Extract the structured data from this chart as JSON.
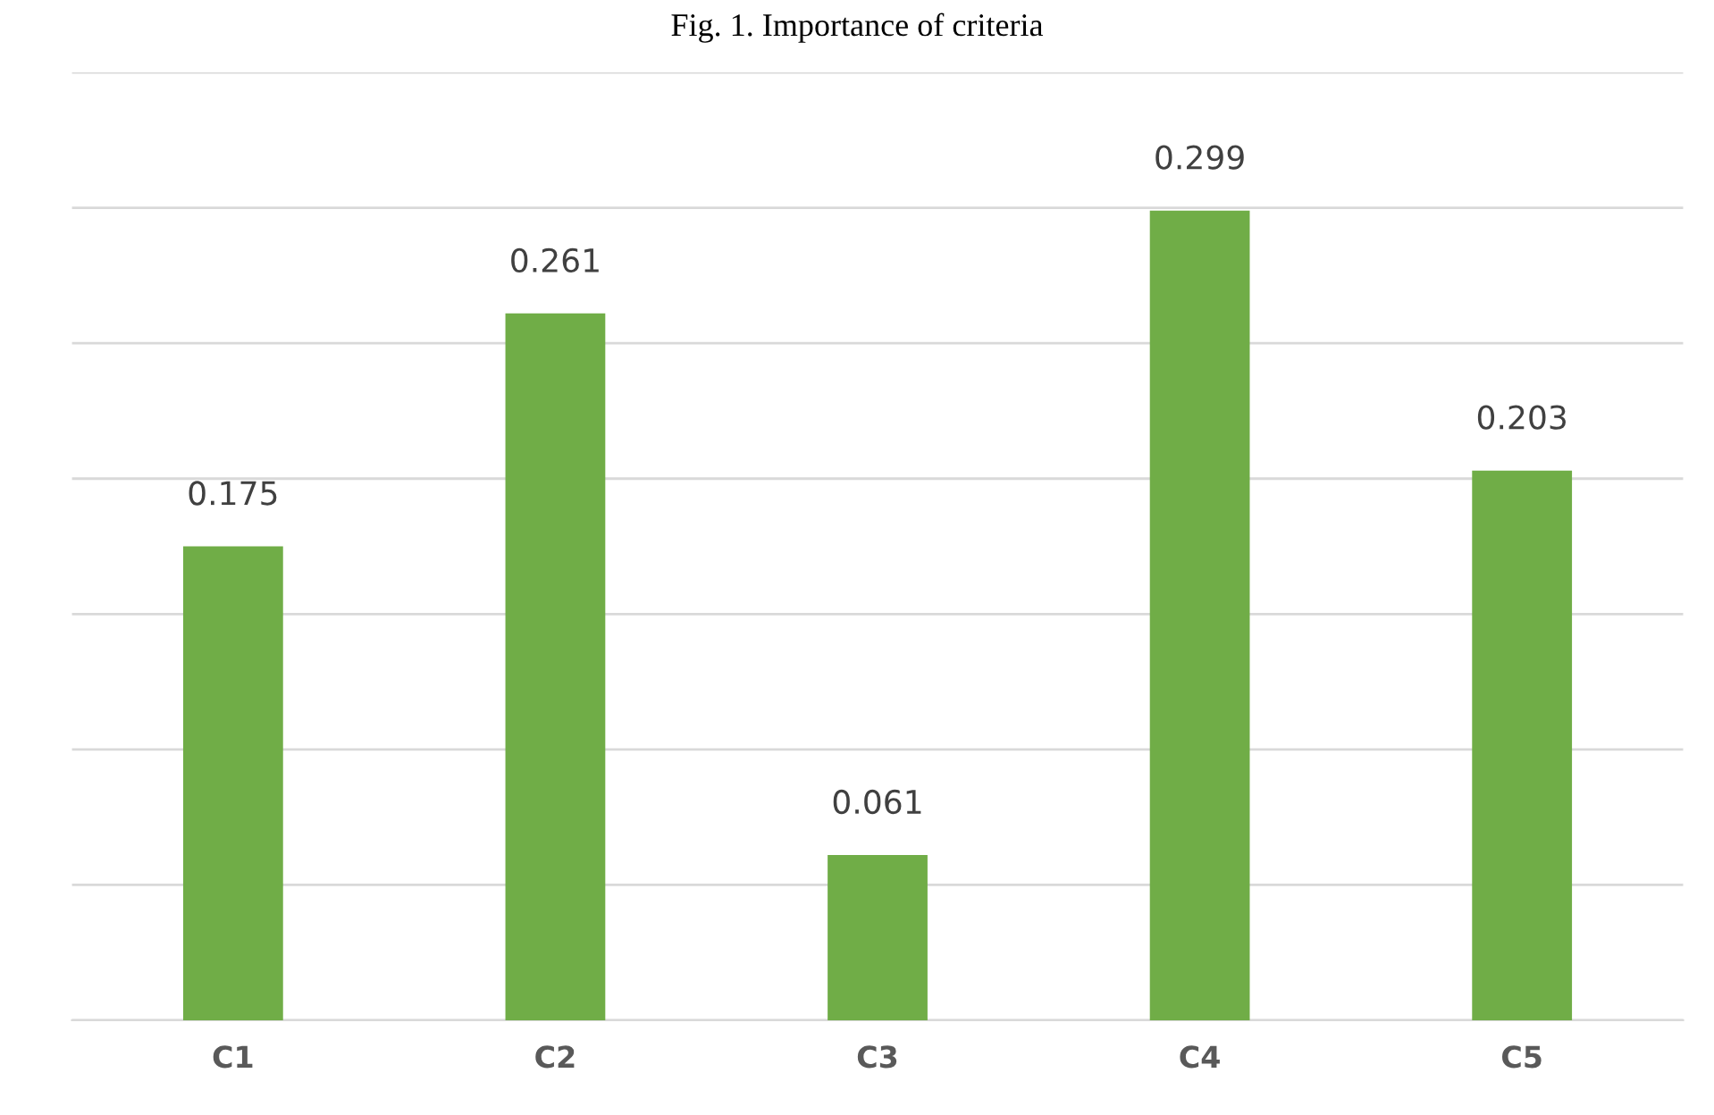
{
  "chart_data": {
    "type": "bar",
    "title": "Fig. 1. Importance of criteria",
    "categories": [
      "C1",
      "C2",
      "C3",
      "C4",
      "C5"
    ],
    "values": [
      0.175,
      0.261,
      0.061,
      0.299,
      0.203
    ],
    "color": "#70ad47",
    "ylim": [
      0,
      0.35
    ],
    "yticks": [
      {
        "value": 0,
        "label": null
      },
      {
        "value": 0.05,
        "label": null
      },
      {
        "value": 0.1,
        "label": null
      },
      {
        "value": 0.15,
        "label": null
      },
      {
        "value": 0.2,
        "label": null
      },
      {
        "value": 0.25,
        "label": null
      },
      {
        "value": 0.3,
        "label": null
      },
      {
        "value": 0.35,
        "label": null
      }
    ],
    "grid": "y",
    "data_labels": true,
    "tick_labels": "x"
  }
}
